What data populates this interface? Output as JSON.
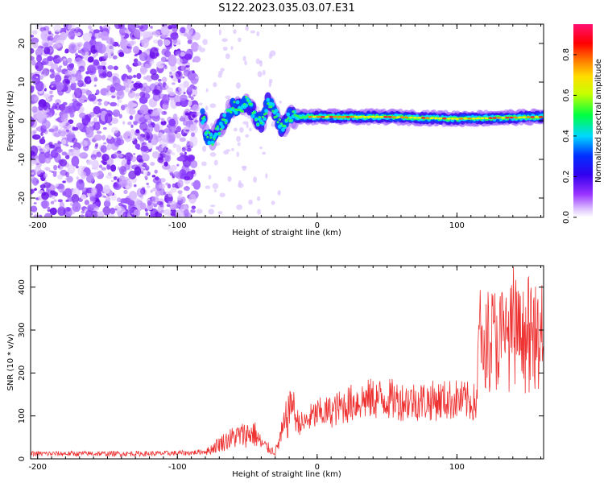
{
  "title": "S122.2023.035.03.07.E31",
  "chart_data": [
    {
      "type": "heatmap",
      "xlabel": "Height of straight line (km)",
      "ylabel": "Frequency (Hz)",
      "xlim": [
        -205,
        162
      ],
      "ylim": [
        -25,
        25
      ],
      "xticks": [
        -200,
        -100,
        0,
        100
      ],
      "yticks": [
        20,
        10,
        0,
        -10,
        -20
      ],
      "colorbar": {
        "label": "Normalized spectral amplitude",
        "range": [
          0.0,
          0.95
        ],
        "ticks": [
          0.0,
          0.2,
          0.4,
          0.6,
          0.8
        ],
        "colors": [
          "#ffffff",
          "#e0c8ff",
          "#9933ff",
          "#4a00e8",
          "#0000ff",
          "#00d8ff",
          "#00ff40",
          "#ffff00",
          "#ff9000",
          "#ff0000",
          "#ff1070"
        ]
      },
      "ridge": [
        {
          "x": -80,
          "y": -4
        },
        {
          "x": -75,
          "y": -5
        },
        {
          "x": -70,
          "y": -2
        },
        {
          "x": -65,
          "y": 1
        },
        {
          "x": -60,
          "y": 4
        },
        {
          "x": -55,
          "y": 3
        },
        {
          "x": -50,
          "y": 5
        },
        {
          "x": -45,
          "y": 2
        },
        {
          "x": -40,
          "y": -1
        },
        {
          "x": -35,
          "y": 5
        },
        {
          "x": -30,
          "y": 2
        },
        {
          "x": -25,
          "y": -2
        },
        {
          "x": -20,
          "y": 1
        },
        {
          "x": -10,
          "y": 1
        },
        {
          "x": 0,
          "y": 1
        },
        {
          "x": 50,
          "y": 1
        },
        {
          "x": 100,
          "y": 0.5
        },
        {
          "x": 160,
          "y": 1
        }
      ]
    },
    {
      "type": "line",
      "xlabel": "Height of straight line (km)",
      "ylabel": "SNR (10 * v/v)",
      "xlim": [
        -205,
        162
      ],
      "ylim": [
        0,
        450
      ],
      "xticks": [
        -200,
        -100,
        0,
        100
      ],
      "yticks": [
        0,
        100,
        200,
        300,
        400
      ],
      "line_color": "#ee3333",
      "series": [
        {
          "x": [
            -205,
            -180,
            -150,
            -120,
            -90,
            -78,
            -70,
            -60,
            -50,
            -45,
            -40,
            -35,
            -30,
            -25,
            -20,
            -18,
            -15,
            -10,
            -5,
            0,
            10,
            20,
            30,
            40,
            50,
            60,
            80,
            100,
            114,
            116,
            130,
            140,
            150,
            162
          ],
          "y": [
            12,
            12,
            12,
            12,
            14,
            18,
            35,
            50,
            58,
            60,
            35,
            25,
            15,
            60,
            110,
            140,
            90,
            80,
            95,
            105,
            110,
            125,
            135,
            140,
            140,
            135,
            135,
            138,
            130,
            280,
            280,
            285,
            275,
            280
          ]
        }
      ]
    }
  ]
}
